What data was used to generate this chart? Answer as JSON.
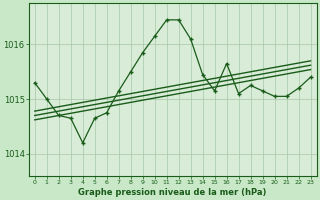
{
  "title": "Graphe pression niveau de la mer (hPa)",
  "background_color": "#c8e8c8",
  "plot_bg_color": "#d8ecd8",
  "grid_color": "#a8c8a8",
  "line_color": "#1a5c1a",
  "x_labels": [
    "0",
    "1",
    "2",
    "3",
    "4",
    "5",
    "6",
    "7",
    "8",
    "9",
    "10",
    "11",
    "12",
    "13",
    "14",
    "15",
    "16",
    "17",
    "18",
    "19",
    "20",
    "21",
    "22",
    "23"
  ],
  "ylim": [
    1013.6,
    1016.75
  ],
  "yticks": [
    1014,
    1015,
    1016
  ],
  "pressure_main": [
    1015.3,
    1015.0,
    1014.7,
    1014.65,
    1014.2,
    1014.65,
    1014.75,
    1015.15,
    1015.5,
    1015.85,
    1016.15,
    1016.45,
    1016.45,
    1016.1,
    1015.45,
    1015.15,
    1015.65,
    1015.1,
    1015.25,
    1015.15,
    1015.05,
    1015.05,
    1015.2,
    1015.4
  ],
  "trend_upper": [
    1014.78,
    1014.82,
    1014.86,
    1014.9,
    1014.94,
    1014.98,
    1015.02,
    1015.06,
    1015.1,
    1015.14,
    1015.18,
    1015.22,
    1015.26,
    1015.3,
    1015.34,
    1015.38,
    1015.42,
    1015.46,
    1015.5,
    1015.54,
    1015.58,
    1015.62,
    1015.66,
    1015.7
  ],
  "trend_lower": [
    1014.62,
    1014.66,
    1014.7,
    1014.74,
    1014.78,
    1014.82,
    1014.86,
    1014.9,
    1014.94,
    1014.98,
    1015.02,
    1015.06,
    1015.1,
    1015.14,
    1015.18,
    1015.22,
    1015.26,
    1015.3,
    1015.34,
    1015.38,
    1015.42,
    1015.46,
    1015.5,
    1015.54
  ],
  "trend_mid": [
    1014.7,
    1014.74,
    1014.78,
    1014.82,
    1014.86,
    1014.9,
    1014.94,
    1014.98,
    1015.02,
    1015.06,
    1015.1,
    1015.14,
    1015.18,
    1015.22,
    1015.26,
    1015.3,
    1015.34,
    1015.38,
    1015.42,
    1015.46,
    1015.5,
    1015.54,
    1015.58,
    1015.62
  ]
}
